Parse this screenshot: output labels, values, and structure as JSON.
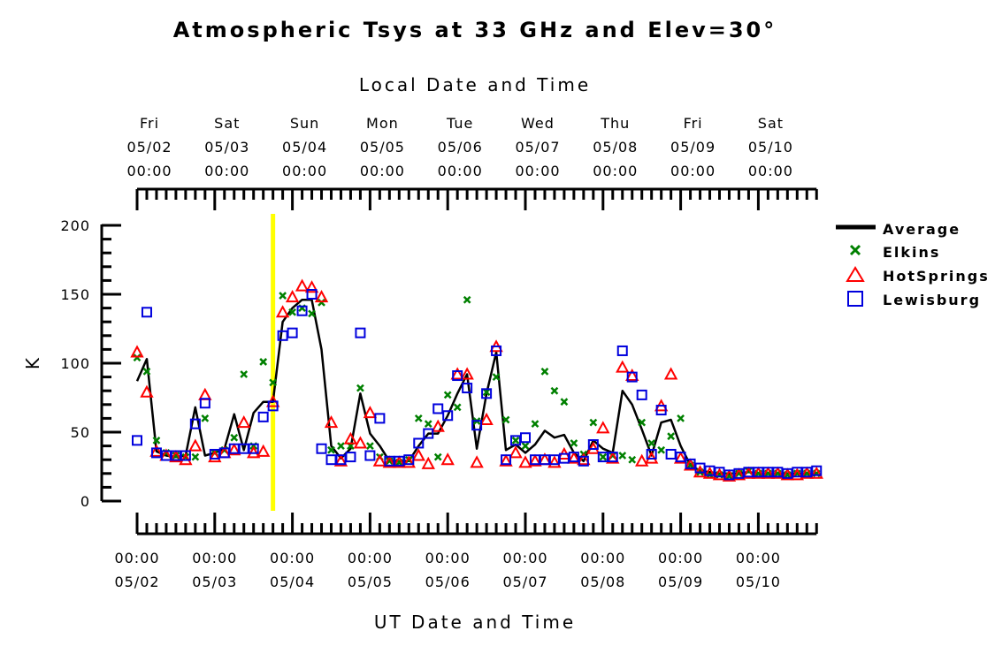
{
  "chart_data": {
    "type": "scatter",
    "title": "Atmospheric Tsys at 33 GHz and Elev=30°",
    "top_axis_title": "Local Date and Time",
    "bottom_axis_title": "UT Date and Time",
    "ylabel": "K",
    "ylim": [
      0,
      200
    ],
    "y_ticks": [
      "0",
      "50",
      "100",
      "150",
      "200"
    ],
    "x_unit": "days from 05/02 00:00 UT",
    "xlim": [
      0,
      8.75
    ],
    "marker_line_x": 1.75,
    "colors": {
      "average": "#000000",
      "elkins": "#008000",
      "hotsprings": "#ff0000",
      "lewisburg": "#0000dd",
      "marker_line": "#ffff00"
    },
    "local_ticks": [
      {
        "day": "Fri",
        "date": "05/02",
        "time": "00:00"
      },
      {
        "day": "Sat",
        "date": "05/03",
        "time": "00:00"
      },
      {
        "day": "Sun",
        "date": "05/04",
        "time": "00:00"
      },
      {
        "day": "Mon",
        "date": "05/05",
        "time": "00:00"
      },
      {
        "day": "Tue",
        "date": "05/06",
        "time": "00:00"
      },
      {
        "day": "Wed",
        "date": "05/07",
        "time": "00:00"
      },
      {
        "day": "Thu",
        "date": "05/08",
        "time": "00:00"
      },
      {
        "day": "Fri",
        "date": "05/09",
        "time": "00:00"
      },
      {
        "day": "Sat",
        "date": "05/10",
        "time": "00:00"
      }
    ],
    "ut_ticks": [
      {
        "time": "00:00",
        "date": "05/02"
      },
      {
        "time": "00:00",
        "date": "05/03"
      },
      {
        "time": "00:00",
        "date": "05/04"
      },
      {
        "time": "00:00",
        "date": "05/05"
      },
      {
        "time": "00:00",
        "date": "05/06"
      },
      {
        "time": "00:00",
        "date": "05/07"
      },
      {
        "time": "00:00",
        "date": "05/08"
      },
      {
        "time": "00:00",
        "date": "05/09"
      },
      {
        "time": "00:00",
        "date": "05/10"
      }
    ],
    "legend": [
      {
        "key": "average",
        "label": "Average",
        "marker": "line"
      },
      {
        "key": "elkins",
        "label": "Elkins",
        "marker": "x"
      },
      {
        "key": "hotsprings",
        "label": "HotSprings",
        "marker": "triangle"
      },
      {
        "key": "lewisburg",
        "label": "Lewisburg",
        "marker": "square"
      }
    ],
    "series": [
      {
        "name": "Average",
        "key": "average",
        "points": [
          [
            0,
            87
          ],
          [
            0.125,
            103
          ],
          [
            0.25,
            36
          ],
          [
            0.375,
            33
          ],
          [
            0.5,
            32
          ],
          [
            0.625,
            33
          ],
          [
            0.75,
            68
          ],
          [
            0.875,
            33
          ],
          [
            1,
            35
          ],
          [
            1.125,
            38
          ],
          [
            1.25,
            63
          ],
          [
            1.375,
            37
          ],
          [
            1.5,
            64
          ],
          [
            1.625,
            72
          ],
          [
            1.75,
            72
          ],
          [
            1.875,
            130
          ],
          [
            2,
            140
          ],
          [
            2.125,
            146
          ],
          [
            2.25,
            146
          ],
          [
            2.375,
            110
          ],
          [
            2.5,
            40
          ],
          [
            2.625,
            31
          ],
          [
            2.75,
            38
          ],
          [
            2.875,
            78
          ],
          [
            3,
            49
          ],
          [
            3.125,
            40
          ],
          [
            3.25,
            29
          ],
          [
            3.375,
            29
          ],
          [
            3.5,
            29
          ],
          [
            3.625,
            40
          ],
          [
            3.75,
            49
          ],
          [
            3.875,
            49
          ],
          [
            4,
            62
          ],
          [
            4.125,
            78
          ],
          [
            4.25,
            92
          ],
          [
            4.375,
            38
          ],
          [
            4.5,
            78
          ],
          [
            4.625,
            108
          ],
          [
            4.75,
            37
          ],
          [
            4.875,
            41
          ],
          [
            5,
            35
          ],
          [
            5.125,
            41
          ],
          [
            5.25,
            51
          ],
          [
            5.375,
            46
          ],
          [
            5.5,
            48
          ],
          [
            5.625,
            35
          ],
          [
            5.75,
            29
          ],
          [
            5.875,
            44
          ],
          [
            6,
            38
          ],
          [
            6.125,
            35
          ],
          [
            6.25,
            80
          ],
          [
            6.375,
            70
          ],
          [
            6.5,
            52
          ],
          [
            6.625,
            33
          ],
          [
            6.75,
            57
          ],
          [
            6.875,
            59
          ],
          [
            7,
            40
          ],
          [
            7.125,
            26
          ],
          [
            7.25,
            22
          ],
          [
            7.375,
            21
          ],
          [
            7.5,
            20
          ],
          [
            7.625,
            20
          ],
          [
            7.75,
            20
          ],
          [
            7.875,
            21
          ],
          [
            8,
            20
          ],
          [
            8.125,
            20
          ],
          [
            8.25,
            20
          ],
          [
            8.375,
            20
          ],
          [
            8.5,
            20
          ],
          [
            8.625,
            20
          ],
          [
            8.75,
            20
          ]
        ]
      },
      {
        "name": "Elkins",
        "key": "elkins",
        "points": [
          [
            0,
            104
          ],
          [
            0.125,
            94
          ],
          [
            0.25,
            44
          ],
          [
            0.375,
            35
          ],
          [
            0.5,
            33
          ],
          [
            0.625,
            32
          ],
          [
            0.75,
            32
          ],
          [
            0.875,
            60
          ],
          [
            1,
            35
          ],
          [
            1.125,
            37
          ],
          [
            1.25,
            46
          ],
          [
            1.375,
            92
          ],
          [
            1.5,
            40
          ],
          [
            1.625,
            101
          ],
          [
            1.75,
            86
          ],
          [
            1.875,
            149
          ],
          [
            2,
            137
          ],
          [
            2.125,
            140
          ],
          [
            2.25,
            136
          ],
          [
            2.375,
            144
          ],
          [
            2.5,
            37
          ],
          [
            2.625,
            40
          ],
          [
            2.75,
            40
          ],
          [
            2.875,
            82
          ],
          [
            3,
            40
          ],
          [
            3.125,
            32
          ],
          [
            3.25,
            29
          ],
          [
            3.375,
            28
          ],
          [
            3.5,
            30
          ],
          [
            3.625,
            60
          ],
          [
            3.75,
            56
          ],
          [
            3.875,
            32
          ],
          [
            4,
            77
          ],
          [
            4.125,
            68
          ],
          [
            4.25,
            146
          ],
          [
            4.375,
            58
          ],
          [
            4.5,
            79
          ],
          [
            4.625,
            90
          ],
          [
            4.75,
            59
          ],
          [
            4.875,
            44
          ],
          [
            5,
            40
          ],
          [
            5.125,
            56
          ],
          [
            5.25,
            94
          ],
          [
            5.375,
            80
          ],
          [
            5.5,
            72
          ],
          [
            5.625,
            42
          ],
          [
            5.75,
            34
          ],
          [
            5.875,
            57
          ],
          [
            6,
            32
          ],
          [
            6.125,
            33
          ],
          [
            6.25,
            33
          ],
          [
            6.375,
            30
          ],
          [
            6.5,
            57
          ],
          [
            6.625,
            42
          ],
          [
            6.75,
            37
          ],
          [
            6.875,
            47
          ],
          [
            7,
            60
          ],
          [
            7.125,
            26
          ],
          [
            7.25,
            21
          ],
          [
            7.375,
            19
          ],
          [
            7.5,
            19
          ],
          [
            7.625,
            18
          ],
          [
            7.75,
            20
          ],
          [
            7.875,
            22
          ],
          [
            8,
            20
          ],
          [
            8.125,
            20
          ],
          [
            8.25,
            20
          ],
          [
            8.375,
            19
          ],
          [
            8.5,
            20
          ],
          [
            8.625,
            20
          ],
          [
            8.75,
            20
          ]
        ]
      },
      {
        "name": "HotSprings",
        "key": "hotsprings",
        "points": [
          [
            0,
            108
          ],
          [
            0.125,
            79
          ],
          [
            0.25,
            36
          ],
          [
            0.375,
            33
          ],
          [
            0.5,
            32
          ],
          [
            0.625,
            30
          ],
          [
            0.75,
            40
          ],
          [
            0.875,
            77
          ],
          [
            1,
            32
          ],
          [
            1.125,
            35
          ],
          [
            1.25,
            37
          ],
          [
            1.375,
            57
          ],
          [
            1.5,
            35
          ],
          [
            1.625,
            36
          ],
          [
            1.75,
            72
          ],
          [
            1.875,
            137
          ],
          [
            2,
            148
          ],
          [
            2.125,
            156
          ],
          [
            2.25,
            155
          ],
          [
            2.375,
            148
          ],
          [
            2.5,
            57
          ],
          [
            2.625,
            29
          ],
          [
            2.75,
            45
          ],
          [
            2.875,
            42
          ],
          [
            3,
            64
          ],
          [
            3.125,
            29
          ],
          [
            3.25,
            28
          ],
          [
            3.375,
            28
          ],
          [
            3.5,
            28
          ],
          [
            3.625,
            33
          ],
          [
            3.75,
            27
          ],
          [
            3.875,
            54
          ],
          [
            4,
            30
          ],
          [
            4.125,
            92
          ],
          [
            4.25,
            92
          ],
          [
            4.375,
            28
          ],
          [
            4.5,
            59
          ],
          [
            4.625,
            112
          ],
          [
            4.75,
            29
          ],
          [
            4.875,
            35
          ],
          [
            5,
            28
          ],
          [
            5.125,
            29
          ],
          [
            5.25,
            30
          ],
          [
            5.375,
            28
          ],
          [
            5.5,
            34
          ],
          [
            5.625,
            31
          ],
          [
            5.75,
            30
          ],
          [
            5.875,
            38
          ],
          [
            6,
            53
          ],
          [
            6.125,
            31
          ],
          [
            6.25,
            97
          ],
          [
            6.375,
            91
          ],
          [
            6.5,
            29
          ],
          [
            6.625,
            31
          ],
          [
            6.75,
            69
          ],
          [
            6.875,
            92
          ],
          [
            7,
            31
          ],
          [
            7.125,
            26
          ],
          [
            7.25,
            21
          ],
          [
            7.375,
            20
          ],
          [
            7.5,
            19
          ],
          [
            7.625,
            18
          ],
          [
            7.75,
            19
          ],
          [
            7.875,
            20
          ],
          [
            8,
            20
          ],
          [
            8.125,
            20
          ],
          [
            8.25,
            20
          ],
          [
            8.375,
            19
          ],
          [
            8.5,
            19
          ],
          [
            8.625,
            20
          ],
          [
            8.75,
            20
          ]
        ]
      },
      {
        "name": "Lewisburg",
        "key": "lewisburg",
        "points": [
          [
            0,
            44
          ],
          [
            0.125,
            137
          ],
          [
            0.25,
            35
          ],
          [
            0.375,
            33
          ],
          [
            0.5,
            33
          ],
          [
            0.625,
            33
          ],
          [
            0.75,
            56
          ],
          [
            0.875,
            71
          ],
          [
            1,
            34
          ],
          [
            1.125,
            35
          ],
          [
            1.25,
            38
          ],
          [
            1.375,
            38
          ],
          [
            1.5,
            38
          ],
          [
            1.625,
            61
          ],
          [
            1.75,
            69
          ],
          [
            1.875,
            120
          ],
          [
            2,
            122
          ],
          [
            2.125,
            138
          ],
          [
            2.25,
            150
          ],
          [
            2.375,
            38
          ],
          [
            2.5,
            30
          ],
          [
            2.625,
            30
          ],
          [
            2.75,
            32
          ],
          [
            2.875,
            122
          ],
          [
            3,
            33
          ],
          [
            3.125,
            60
          ],
          [
            3.25,
            29
          ],
          [
            3.375,
            29
          ],
          [
            3.5,
            30
          ],
          [
            3.625,
            42
          ],
          [
            3.75,
            49
          ],
          [
            3.875,
            67
          ],
          [
            4,
            62
          ],
          [
            4.125,
            91
          ],
          [
            4.25,
            82
          ],
          [
            4.375,
            55
          ],
          [
            4.5,
            78
          ],
          [
            4.625,
            109
          ],
          [
            4.75,
            30
          ],
          [
            4.875,
            44
          ],
          [
            5,
            46
          ],
          [
            5.125,
            30
          ],
          [
            5.25,
            30
          ],
          [
            5.375,
            30
          ],
          [
            5.5,
            31
          ],
          [
            5.625,
            32
          ],
          [
            5.75,
            29
          ],
          [
            5.875,
            41
          ],
          [
            6,
            32
          ],
          [
            6.125,
            32
          ],
          [
            6.25,
            109
          ],
          [
            6.375,
            90
          ],
          [
            6.5,
            77
          ],
          [
            6.625,
            34
          ],
          [
            6.75,
            66
          ],
          [
            6.875,
            34
          ],
          [
            7,
            32
          ],
          [
            7.125,
            27
          ],
          [
            7.25,
            24
          ],
          [
            7.375,
            22
          ],
          [
            7.5,
            21
          ],
          [
            7.625,
            19
          ],
          [
            7.75,
            20
          ],
          [
            7.875,
            21
          ],
          [
            8,
            21
          ],
          [
            8.125,
            21
          ],
          [
            8.25,
            21
          ],
          [
            8.375,
            20
          ],
          [
            8.5,
            21
          ],
          [
            8.625,
            21
          ],
          [
            8.75,
            22
          ]
        ]
      }
    ]
  }
}
